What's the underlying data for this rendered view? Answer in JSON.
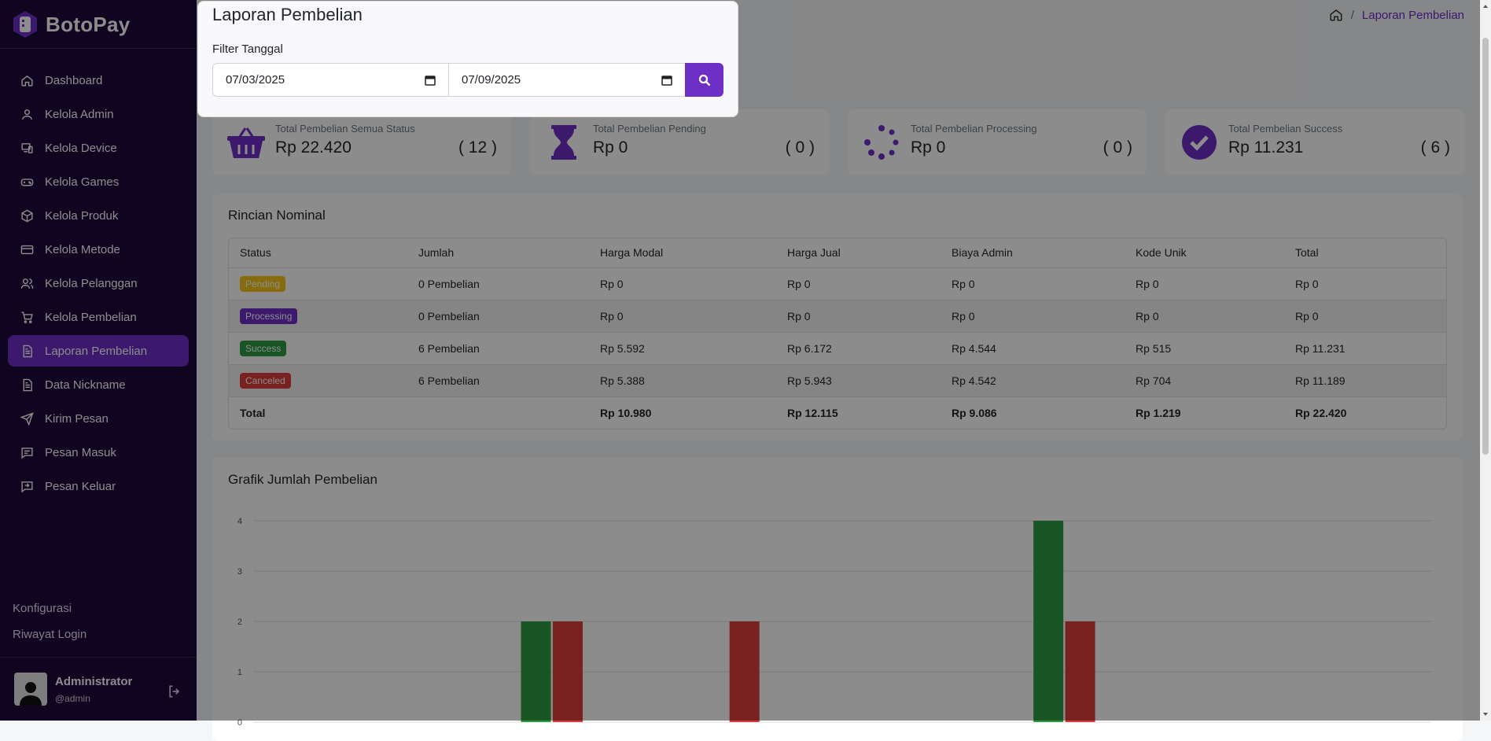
{
  "brand": {
    "name": "BotoPay",
    "accent": "#6e2fc7",
    "sidebar_bg": "#1e0a3c"
  },
  "sidebar": {
    "items": [
      {
        "label": "Dashboard",
        "icon": "home-icon"
      },
      {
        "label": "Kelola Admin",
        "icon": "user-icon"
      },
      {
        "label": "Kelola Device",
        "icon": "devices-icon"
      },
      {
        "label": "Kelola Games",
        "icon": "gamepad-icon"
      },
      {
        "label": "Kelola Produk",
        "icon": "box-icon"
      },
      {
        "label": "Kelola Metode",
        "icon": "card-icon"
      },
      {
        "label": "Kelola Pelanggan",
        "icon": "users-icon"
      },
      {
        "label": "Kelola Pembelian",
        "icon": "cart-icon"
      },
      {
        "label": "Laporan Pembelian",
        "icon": "document-icon",
        "active": true
      },
      {
        "label": "Data Nickname",
        "icon": "document-icon"
      },
      {
        "label": "Kirim Pesan",
        "icon": "send-icon"
      },
      {
        "label": "Pesan Masuk",
        "icon": "message-icon"
      },
      {
        "label": "Pesan Keluar",
        "icon": "message-out-icon"
      }
    ],
    "bottom_links": [
      "Konfigurasi",
      "Riwayat Login"
    ],
    "profile": {
      "name": "Administrator",
      "username": "@admin"
    }
  },
  "breadcrumb": {
    "current": "Laporan Pembelian",
    "separator": "/"
  },
  "modal": {
    "title": "Laporan Pembelian",
    "filter_label": "Filter Tanggal",
    "date_from": "07/03/2025",
    "date_to": "07/09/2025"
  },
  "stats": [
    {
      "label": "Total Pembelian Semua Status",
      "value": "Rp 22.420",
      "count": "( 12 )",
      "icon": "basket-icon"
    },
    {
      "label": "Total Pembelian Pending",
      "value": "Rp 0",
      "count": "( 0 )",
      "icon": "hourglass-icon"
    },
    {
      "label": "Total Pembelian Processing",
      "value": "Rp 0",
      "count": "( 0 )",
      "icon": "spinner-icon"
    },
    {
      "label": "Total Pembelian Success",
      "value": "Rp 11.231",
      "count": "( 6 )",
      "icon": "check-circle-icon"
    }
  ],
  "rincian": {
    "title": "Rincian Nominal",
    "columns": [
      "Status",
      "Jumlah",
      "Harga Modal",
      "Harga Jual",
      "Biaya Admin",
      "Kode Unik",
      "Total"
    ],
    "rows": [
      {
        "status": "Pending",
        "jumlah": "0 Pembelian",
        "modal": "Rp 0",
        "jual": "Rp 0",
        "admin": "Rp 0",
        "kode": "Rp 0",
        "total": "Rp 0"
      },
      {
        "status": "Processing",
        "jumlah": "0 Pembelian",
        "modal": "Rp 0",
        "jual": "Rp 0",
        "admin": "Rp 0",
        "kode": "Rp 0",
        "total": "Rp 0"
      },
      {
        "status": "Success",
        "jumlah": "6 Pembelian",
        "modal": "Rp 5.592",
        "jual": "Rp 6.172",
        "admin": "Rp 4.544",
        "kode": "Rp 515",
        "total": "Rp 11.231"
      },
      {
        "status": "Canceled",
        "jumlah": "6 Pembelian",
        "modal": "Rp 5.388",
        "jual": "Rp 5.943",
        "admin": "Rp 4.542",
        "kode": "Rp 704",
        "total": "Rp 11.189"
      }
    ],
    "total_row": {
      "label": "Total",
      "modal": "Rp 10.980",
      "jual": "Rp 12.115",
      "admin": "Rp 9.086",
      "kode": "Rp 1.219",
      "total": "Rp 22.420"
    }
  },
  "grafik": {
    "title": "Grafik Jumlah Pembelian"
  },
  "chart_data": {
    "type": "bar",
    "title": "Grafik Jumlah Pembelian",
    "ylim": [
      0,
      4
    ],
    "yticks": [
      "0",
      "1",
      "2",
      "3",
      "4"
    ],
    "grid": true,
    "bars": [
      {
        "center_frac": 0.24,
        "value": 2,
        "color": "#2f9c44"
      },
      {
        "center_frac": 0.267,
        "value": 2,
        "color": "#dc3b3b"
      },
      {
        "center_frac": 0.417,
        "value": 2,
        "color": "#dc3b3b"
      },
      {
        "center_frac": 0.675,
        "value": 4,
        "color": "#2f9c44"
      },
      {
        "center_frac": 0.702,
        "value": 2,
        "color": "#dc3b3b"
      }
    ]
  }
}
